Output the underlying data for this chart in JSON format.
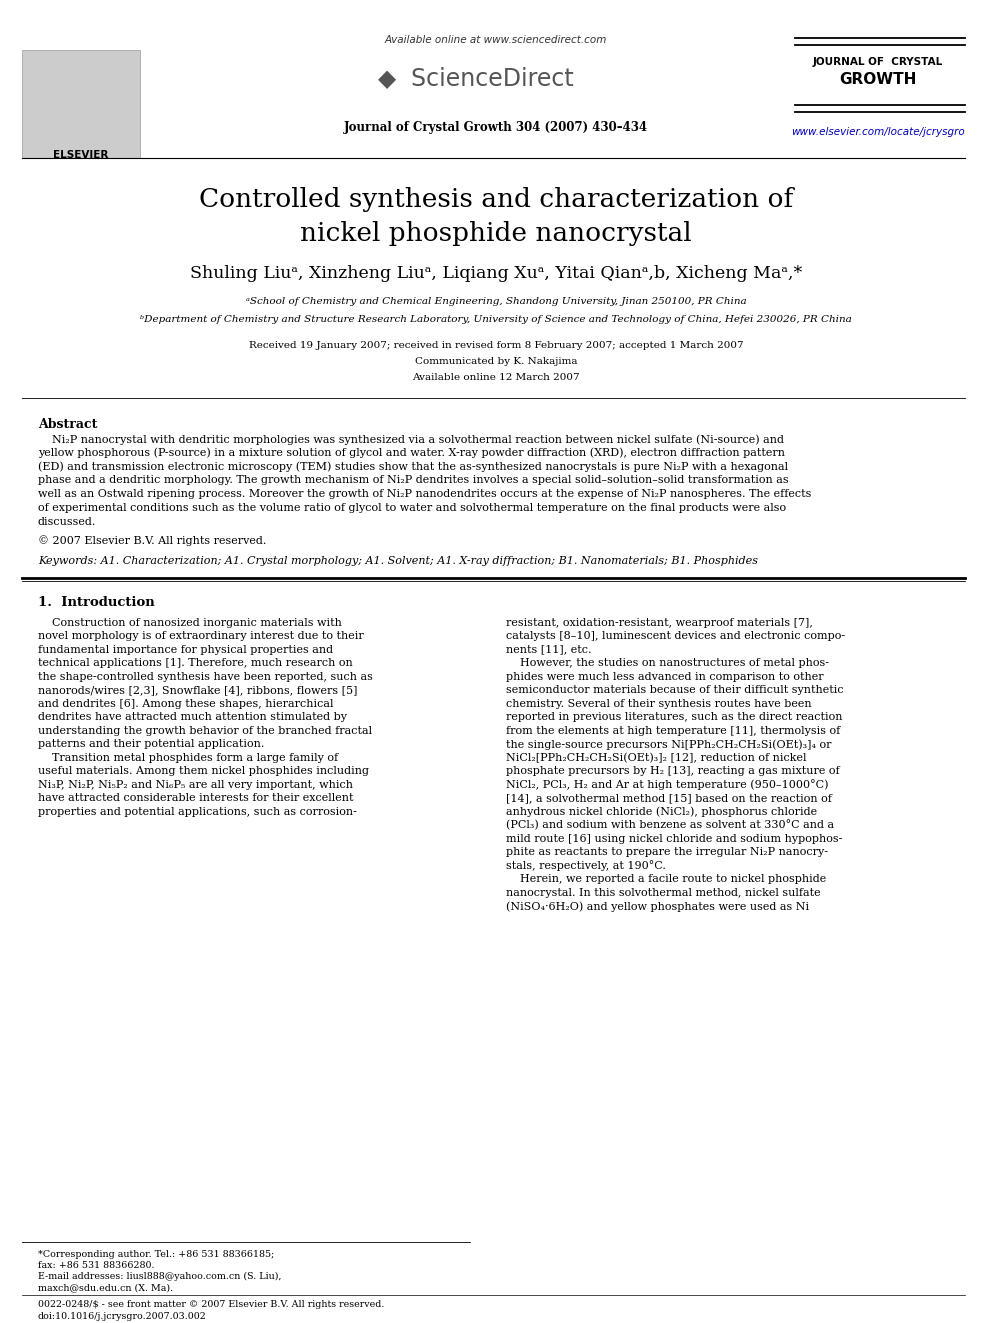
{
  "bg_color": "#ffffff",
  "title_line1": "Controlled synthesis and characterization of",
  "title_line2": "nickel phosphide nanocrystal",
  "authors": "Shuling Liuᵃ, Xinzheng Liuᵃ, Liqiang Xuᵃ, Yitai Qianᵃ,b, Xicheng Maᵃ,*",
  "affil_a": "ᵃSchool of Chemistry and Chemical Engineering, Shandong University, Jinan 250100, PR China",
  "affil_b": "ᵇDepartment of Chemistry and Structure Research Laboratory, University of Science and Technology of China, Hefei 230026, PR China",
  "received": "Received 19 January 2007; received in revised form 8 February 2007; accepted 1 March 2007",
  "communicated": "Communicated by K. Nakajima",
  "available": "Available online 12 March 2007",
  "header_text": "Available online at www.sciencedirect.com",
  "journal_info": "Journal of Crystal Growth 304 (2007) 430–434",
  "url": "www.elsevier.com/locate/jcrysgro",
  "abstract_title": "Abstract",
  "copyright": "© 2007 Elsevier B.V. All rights reserved.",
  "keywords": "Keywords: A1. Characterization; A1. Crystal morphology; A1. Solvent; A1. X-ray diffraction; B1. Nanomaterials; B1. Phosphides",
  "section1_title": "1.  Introduction",
  "footer_line1": "0022-0248/$ - see front matter © 2007 Elsevier B.V. All rights reserved.",
  "footer_line2": "doi:10.1016/j.jcrysgro.2007.03.002",
  "footnote_star": "*Corresponding author. Tel.: +86 531 88366185;",
  "footnote_fax": "fax: +86 531 88366280.",
  "footnote_email": "E-mail addresses: liusl888@yahoo.com.cn (S. Liu),",
  "footnote_email2": "maxch@sdu.edu.cn (X. Ma).",
  "abstract_lines": [
    "    Ni₂P nanocrystal with dendritic morphologies was synthesized via a solvothermal reaction between nickel sulfate (Ni-source) and",
    "yellow phosphorous (P-source) in a mixture solution of glycol and water. X-ray powder diffraction (XRD), electron diffraction pattern",
    "(ED) and transmission electronic microscopy (TEM) studies show that the as-synthesized nanocrystals is pure Ni₂P with a hexagonal",
    "phase and a dendritic morphology. The growth mechanism of Ni₂P dendrites involves a special solid–solution–solid transformation as",
    "well as an Ostwald ripening process. Moreover the growth of Ni₂P nanodendrites occurs at the expense of Ni₂P nanospheres. The effects",
    "of experimental conditions such as the volume ratio of glycol to water and solvothermal temperature on the final products were also",
    "discussed."
  ],
  "col1_lines": [
    "    Construction of nanosized inorganic materials with",
    "novel morphology is of extraordinary interest due to their",
    "fundamental importance for physical properties and",
    "technical applications [1]. Therefore, much research on",
    "the shape-controlled synthesis have been reported, such as",
    "nanorods/wires [2,3], Snowflake [4], ribbons, flowers [5]",
    "and dendrites [6]. Among these shapes, hierarchical",
    "dendrites have attracted much attention stimulated by",
    "understanding the growth behavior of the branched fractal",
    "patterns and their potential application.",
    "    Transition metal phosphides form a large family of",
    "useful materials. Among them nickel phosphides including",
    "Ni₃P, Ni₂P, Ni₅P₂ and Ni₆P₅ are all very important, which",
    "have attracted considerable interests for their excellent",
    "properties and potential applications, such as corrosion-"
  ],
  "col2_lines": [
    "resistant, oxidation-resistant, wearproof materials [7],",
    "catalysts [8–10], luminescent devices and electronic compo-",
    "nents [11], etc.",
    "    However, the studies on nanostructures of metal phos-",
    "phides were much less advanced in comparison to other",
    "semiconductor materials because of their difficult synthetic",
    "chemistry. Several of their synthesis routes have been",
    "reported in previous literatures, such as the direct reaction",
    "from the elements at high temperature [11], thermolysis of",
    "the single-source precursors Ni[PPh₂CH₂CH₂Si(OEt)₃]₄ or",
    "NiCl₂[PPh₂CH₂CH₂Si(OEt)₃]₂ [12], reduction of nickel",
    "phosphate precursors by H₂ [13], reacting a gas mixture of",
    "NiCl₂, PCl₃, H₂ and Ar at high temperature (950–1000°C)",
    "[14], a solvothermal method [15] based on the reaction of",
    "anhydrous nickel chloride (NiCl₂), phosphorus chloride",
    "(PCl₃) and sodium with benzene as solvent at 330°C and a",
    "mild route [16] using nickel chloride and sodium hypophos-",
    "phite as reactants to prepare the irregular Ni₂P nanocry-",
    "stals, respectively, at 190°C.",
    "    Herein, we reported a facile route to nickel phosphide",
    "nanocrystal. In this solvothermal method, nickel sulfate",
    "(NiSO₄·6H₂O) and yellow phosphates were used as Ni"
  ]
}
